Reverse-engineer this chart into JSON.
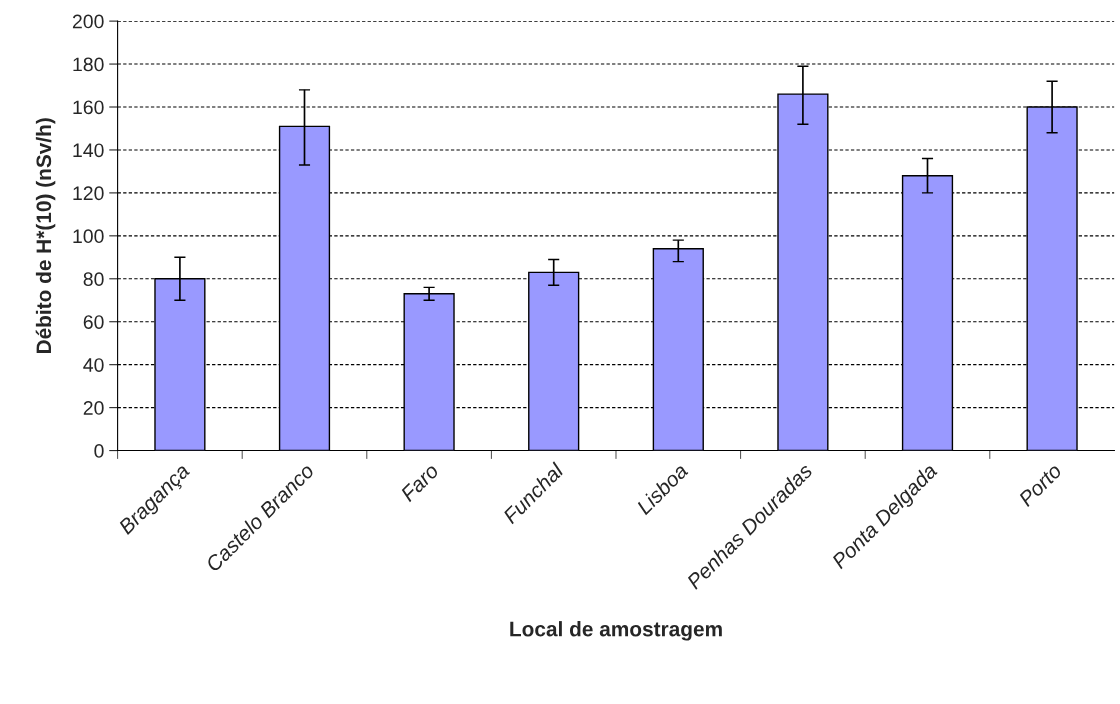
{
  "chart_data": {
    "type": "bar",
    "xlabel": "Local de amostragem",
    "ylabel": "Débito de H*(10) (nSv/h)",
    "categories": [
      "Bragança",
      "Castelo Branco",
      "Faro",
      "Funchal",
      "Lisboa",
      "Penhas Douradas",
      "Ponta Delgada",
      "Porto"
    ],
    "values": [
      80,
      151,
      73,
      83,
      94,
      166,
      128,
      160
    ],
    "errors": [
      [
        70,
        90
      ],
      [
        133,
        168
      ],
      [
        70,
        76
      ],
      [
        77,
        89
      ],
      [
        88,
        98
      ],
      [
        152,
        179
      ],
      [
        120,
        136
      ],
      [
        148,
        172
      ]
    ],
    "color": "#9999ff",
    "ylim": [
      0,
      200
    ],
    "yticks": [
      0,
      20,
      40,
      60,
      80,
      100,
      120,
      140,
      160,
      180,
      200
    ],
    "grid": "y",
    "line_style": "dashed"
  }
}
